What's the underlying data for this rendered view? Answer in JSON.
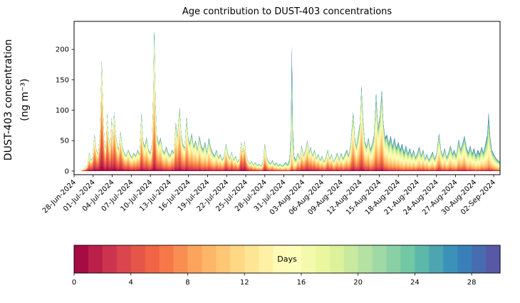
{
  "chart_data": {
    "type": "area",
    "subtype": "stacked-area-age-contribution",
    "title": "Age contribution to DUST-403 concentrations",
    "ylabel_line1": "DUST-403 concentration",
    "ylabel_line2": "(ng m⁻³)",
    "xlabel": "",
    "xlim": [
      0,
      67
    ],
    "ylim": [
      -6,
      246
    ],
    "y_ticks": [
      0,
      50,
      100,
      150,
      200
    ],
    "x_tick_days": [
      0,
      3,
      6,
      9,
      12,
      15,
      18,
      21,
      24,
      27,
      30,
      33,
      36,
      39,
      42,
      45,
      48,
      51,
      54,
      57,
      60,
      63,
      66
    ],
    "x_tick_labels": [
      "28-Jun-2024",
      "01-Jul-2024",
      "04-Jul-2024",
      "07-Jul-2024",
      "10-Jul-2024",
      "13-Jul-2024",
      "16-Jul-2024",
      "19-Jul-2024",
      "22-Jul-2024",
      "25-Jul-2024",
      "28-Jul-2024",
      "31-Jul-2024",
      "03-Aug-2024",
      "06-Aug-2024",
      "09-Aug-2024",
      "12-Aug-2024",
      "15-Aug-2024",
      "18-Aug-2024",
      "21-Aug-2024",
      "24-Aug-2024",
      "27-Aug-2024",
      "30-Aug-2024",
      "02-Sep-2024"
    ],
    "grid": false,
    "legend": "colorbar-bottom",
    "colorbar": {
      "label": "Days",
      "ticks": [
        0,
        4,
        8,
        12,
        16,
        20,
        24,
        28
      ],
      "range": [
        0,
        30
      ],
      "bins": 30
    },
    "colormap_name": "Spectral",
    "colormap_anchors": [
      "#9e0142",
      "#d53e4f",
      "#f46d43",
      "#fdae61",
      "#fee08b",
      "#ffffbf",
      "#e6f598",
      "#abdda4",
      "#66c2a5",
      "#3288bd",
      "#5e4fa2"
    ],
    "age_bins": 30,
    "age_distribution_sd": 6.5,
    "points_format": "[days_since_28-Jun-2024, total_concentration_ng_m3, mean_age_days]",
    "points": [
      [
        0,
        0,
        12
      ],
      [
        1,
        0,
        12
      ],
      [
        1.4,
        2,
        10
      ],
      [
        1.8,
        6,
        9
      ],
      [
        2.1,
        10,
        8
      ],
      [
        2.4,
        30,
        8
      ],
      [
        2.6,
        18,
        8
      ],
      [
        2.9,
        22,
        7
      ],
      [
        3.2,
        60,
        7
      ],
      [
        3.5,
        35,
        7
      ],
      [
        3.8,
        28,
        7
      ],
      [
        4.1,
        70,
        6
      ],
      [
        4.35,
        181,
        6
      ],
      [
        4.6,
        85,
        6
      ],
      [
        4.8,
        45,
        7
      ],
      [
        5,
        38,
        7
      ],
      [
        5.2,
        95,
        6
      ],
      [
        5.45,
        55,
        7
      ],
      [
        5.7,
        40,
        7
      ],
      [
        5.9,
        88,
        7
      ],
      [
        6.1,
        50,
        7
      ],
      [
        6.3,
        97,
        6
      ],
      [
        6.55,
        60,
        7
      ],
      [
        6.8,
        42,
        8
      ],
      [
        7,
        35,
        8
      ],
      [
        7.3,
        65,
        7
      ],
      [
        7.6,
        40,
        8
      ],
      [
        7.9,
        30,
        9
      ],
      [
        8.2,
        25,
        9
      ],
      [
        8.5,
        35,
        9
      ],
      [
        8.8,
        28,
        10
      ],
      [
        9.1,
        22,
        10
      ],
      [
        9.4,
        30,
        10
      ],
      [
        9.7,
        25,
        10
      ],
      [
        10,
        35,
        10
      ],
      [
        10.3,
        28,
        10
      ],
      [
        10.6,
        95,
        9
      ],
      [
        10.85,
        50,
        9
      ],
      [
        11.1,
        40,
        10
      ],
      [
        11.4,
        55,
        10
      ],
      [
        11.7,
        35,
        10
      ],
      [
        12,
        30,
        10
      ],
      [
        12.25,
        45,
        10
      ],
      [
        12.45,
        120,
        10
      ],
      [
        12.6,
        231,
        10
      ],
      [
        12.8,
        120,
        10
      ],
      [
        13,
        60,
        10
      ],
      [
        13.3,
        45,
        10
      ],
      [
        13.6,
        55,
        10
      ],
      [
        13.9,
        35,
        10
      ],
      [
        14.2,
        30,
        11
      ],
      [
        14.5,
        40,
        11
      ],
      [
        14.8,
        30,
        11
      ],
      [
        15.1,
        25,
        11
      ],
      [
        15.4,
        35,
        10
      ],
      [
        15.7,
        30,
        10
      ],
      [
        16,
        80,
        9
      ],
      [
        16.25,
        55,
        10
      ],
      [
        16.6,
        105,
        9
      ],
      [
        16.85,
        60,
        10
      ],
      [
        17.1,
        45,
        10
      ],
      [
        17.4,
        38,
        10
      ],
      [
        17.7,
        88,
        10
      ],
      [
        17.95,
        55,
        10
      ],
      [
        18.2,
        45,
        11
      ],
      [
        18.5,
        62,
        11
      ],
      [
        18.8,
        40,
        11
      ],
      [
        19.1,
        50,
        11
      ],
      [
        19.4,
        35,
        11
      ],
      [
        19.7,
        58,
        11
      ],
      [
        20,
        42,
        12
      ],
      [
        20.3,
        35,
        12
      ],
      [
        20.6,
        48,
        12
      ],
      [
        20.9,
        30,
        12
      ],
      [
        21.2,
        55,
        12
      ],
      [
        21.5,
        38,
        12
      ],
      [
        21.8,
        30,
        12
      ],
      [
        22.1,
        25,
        12
      ],
      [
        22.4,
        35,
        11
      ],
      [
        22.7,
        22,
        11
      ],
      [
        23,
        28,
        11
      ],
      [
        23.3,
        18,
        11
      ],
      [
        23.6,
        25,
        10
      ],
      [
        23.9,
        45,
        9
      ],
      [
        24.2,
        28,
        10
      ],
      [
        24.5,
        20,
        10
      ],
      [
        24.8,
        32,
        9
      ],
      [
        25.1,
        18,
        10
      ],
      [
        25.4,
        25,
        10
      ],
      [
        25.7,
        15,
        10
      ],
      [
        26,
        20,
        9
      ],
      [
        26.3,
        48,
        6
      ],
      [
        26.55,
        30,
        7
      ],
      [
        26.8,
        50,
        6
      ],
      [
        27.05,
        28,
        7
      ],
      [
        27.3,
        18,
        9
      ],
      [
        27.6,
        12,
        10
      ],
      [
        27.9,
        16,
        10
      ],
      [
        28.2,
        10,
        11
      ],
      [
        28.5,
        14,
        11
      ],
      [
        28.8,
        9,
        12
      ],
      [
        29.1,
        12,
        12
      ],
      [
        29.4,
        8,
        12
      ],
      [
        29.7,
        15,
        12
      ],
      [
        30,
        45,
        10
      ],
      [
        30.3,
        22,
        11
      ],
      [
        30.6,
        15,
        12
      ],
      [
        30.9,
        12,
        12
      ],
      [
        31.2,
        18,
        12
      ],
      [
        31.5,
        10,
        13
      ],
      [
        31.8,
        14,
        13
      ],
      [
        32.1,
        9,
        13
      ],
      [
        32.4,
        12,
        13
      ],
      [
        32.7,
        8,
        13
      ],
      [
        33,
        11,
        14
      ],
      [
        33.3,
        15,
        14
      ],
      [
        33.6,
        10,
        15
      ],
      [
        33.9,
        20,
        17
      ],
      [
        34.1,
        60,
        19
      ],
      [
        34.25,
        208,
        20
      ],
      [
        34.4,
        70,
        19
      ],
      [
        34.6,
        25,
        16
      ],
      [
        34.9,
        18,
        13
      ],
      [
        35.2,
        30,
        11
      ],
      [
        35.5,
        20,
        11
      ],
      [
        35.8,
        42,
        10
      ],
      [
        36.1,
        25,
        10
      ],
      [
        36.4,
        35,
        10
      ],
      [
        36.7,
        50,
        9
      ],
      [
        36.95,
        30,
        10
      ],
      [
        37.2,
        40,
        10
      ],
      [
        37.5,
        25,
        10
      ],
      [
        37.8,
        35,
        10
      ],
      [
        38.1,
        20,
        10
      ],
      [
        38.4,
        28,
        10
      ],
      [
        38.7,
        18,
        11
      ],
      [
        39,
        25,
        11
      ],
      [
        39.3,
        15,
        11
      ],
      [
        39.6,
        22,
        11
      ],
      [
        39.9,
        35,
        10
      ],
      [
        40.2,
        20,
        10
      ],
      [
        40.5,
        28,
        10
      ],
      [
        40.8,
        15,
        11
      ],
      [
        41.1,
        22,
        11
      ],
      [
        41.4,
        30,
        11
      ],
      [
        41.7,
        18,
        11
      ],
      [
        42,
        30,
        11
      ],
      [
        42.3,
        20,
        12
      ],
      [
        42.6,
        28,
        12
      ],
      [
        42.9,
        35,
        12
      ],
      [
        43.2,
        25,
        12
      ],
      [
        43.5,
        45,
        12
      ],
      [
        43.9,
        97,
        11
      ],
      [
        44.15,
        55,
        11
      ],
      [
        44.4,
        40,
        12
      ],
      [
        44.7,
        60,
        12
      ],
      [
        45,
        80,
        11
      ],
      [
        45.2,
        140,
        11
      ],
      [
        45.45,
        85,
        12
      ],
      [
        45.7,
        50,
        12
      ],
      [
        46,
        40,
        12
      ],
      [
        46.3,
        55,
        12
      ],
      [
        46.6,
        35,
        13
      ],
      [
        46.9,
        45,
        13
      ],
      [
        47.2,
        60,
        13
      ],
      [
        47.5,
        128,
        13
      ],
      [
        47.8,
        70,
        13
      ],
      [
        48.1,
        90,
        13
      ],
      [
        48.4,
        133,
        12
      ],
      [
        48.65,
        80,
        13
      ],
      [
        48.9,
        55,
        14
      ],
      [
        49.2,
        60,
        14
      ],
      [
        49.5,
        45,
        15
      ],
      [
        49.8,
        58,
        15
      ],
      [
        50.1,
        40,
        15
      ],
      [
        50.4,
        55,
        15
      ],
      [
        50.7,
        38,
        15
      ],
      [
        51,
        48,
        15
      ],
      [
        51.3,
        35,
        15
      ],
      [
        51.6,
        45,
        16
      ],
      [
        51.9,
        30,
        16
      ],
      [
        52.2,
        42,
        15
      ],
      [
        52.5,
        28,
        15
      ],
      [
        52.8,
        38,
        15
      ],
      [
        53.1,
        25,
        15
      ],
      [
        53.4,
        35,
        14
      ],
      [
        53.7,
        22,
        14
      ],
      [
        54,
        30,
        14
      ],
      [
        54.3,
        40,
        14
      ],
      [
        54.6,
        25,
        14
      ],
      [
        54.9,
        35,
        13
      ],
      [
        55.2,
        20,
        13
      ],
      [
        55.5,
        28,
        13
      ],
      [
        55.8,
        18,
        14
      ],
      [
        56.1,
        25,
        14
      ],
      [
        56.4,
        32,
        14
      ],
      [
        56.7,
        20,
        14
      ],
      [
        57,
        28,
        13
      ],
      [
        57.4,
        62,
        13
      ],
      [
        57.7,
        35,
        13
      ],
      [
        58,
        25,
        14
      ],
      [
        58.3,
        38,
        14
      ],
      [
        58.6,
        22,
        14
      ],
      [
        58.9,
        30,
        14
      ],
      [
        59.2,
        42,
        14
      ],
      [
        59.5,
        28,
        14
      ],
      [
        59.8,
        35,
        15
      ],
      [
        60.1,
        25,
        15
      ],
      [
        60.5,
        52,
        14
      ],
      [
        60.8,
        35,
        14
      ],
      [
        61.1,
        45,
        14
      ],
      [
        61.4,
        58,
        14
      ],
      [
        61.7,
        40,
        15
      ],
      [
        62,
        30,
        15
      ],
      [
        62.3,
        42,
        15
      ],
      [
        62.6,
        28,
        15
      ],
      [
        62.9,
        38,
        16
      ],
      [
        63.2,
        25,
        16
      ],
      [
        63.5,
        35,
        16
      ],
      [
        63.8,
        28,
        16
      ],
      [
        64.1,
        40,
        15
      ],
      [
        64.4,
        30,
        15
      ],
      [
        64.7,
        45,
        16
      ],
      [
        65,
        60,
        17
      ],
      [
        65.2,
        96,
        17
      ],
      [
        65.45,
        55,
        16
      ],
      [
        65.7,
        35,
        15
      ],
      [
        66,
        28,
        15
      ],
      [
        66.3,
        22,
        15
      ],
      [
        66.6,
        18,
        15
      ],
      [
        67,
        15,
        15
      ]
    ]
  }
}
